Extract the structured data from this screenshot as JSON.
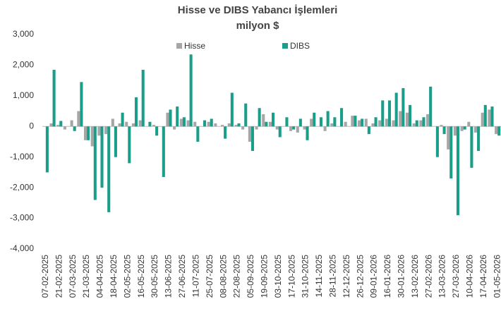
{
  "chart_data": {
    "type": "bar",
    "title": "Hisse ve DIBS Yabancı İşlemleri",
    "subtitle": "milyon $",
    "categories": [
      "07-02-2025",
      null,
      "21-02-2025",
      null,
      "07-03-2025",
      null,
      "21-03-2025",
      null,
      "04-04-2025",
      null,
      "18-04-2025",
      null,
      "02-05-2025",
      null,
      "16-05-2025",
      null,
      "30-05-2025",
      null,
      "13-06-2025",
      null,
      "27-06-2025",
      null,
      "11-07-2025",
      null,
      "25-07-2025",
      null,
      "08-08-2025",
      null,
      "22-08-2025",
      null,
      "05-09-2025",
      null,
      "19-09-2025",
      null,
      "03-10-2025",
      null,
      "17-10-2025",
      null,
      "31-10-2025",
      null,
      "14-11-2025",
      null,
      "28-11-2025",
      null,
      "12-12-2025",
      null,
      "26-12-2025",
      null,
      "09-01-2026",
      null,
      "16-01-2026",
      null,
      "30-01-2026",
      null,
      "13-02-2026",
      null,
      "27-02-2026",
      null,
      "13-03-2026",
      null,
      "27-03-2026",
      null,
      "10-04-2026",
      null,
      "17-04-2026",
      null,
      "01-05-2026"
    ],
    "series": [
      {
        "name": "Hisse",
        "color": "#a6a6a6",
        "values": [
          0,
          100,
          50,
          -100,
          200,
          500,
          -450,
          -650,
          -300,
          -250,
          250,
          100,
          150,
          100,
          200,
          0,
          50,
          0,
          450,
          -100,
          250,
          200,
          150,
          0,
          150,
          100,
          50,
          100,
          50,
          -100,
          -500,
          -100,
          400,
          150,
          -100,
          0,
          -150,
          -200,
          -100,
          250,
          0,
          -150,
          100,
          0,
          150,
          350,
          200,
          250,
          100,
          200,
          250,
          200,
          500,
          450,
          100,
          200,
          400,
          0,
          50,
          -750,
          -300,
          -150,
          150,
          -200,
          450,
          550,
          -250
        ]
      },
      {
        "name": "DIBS",
        "color": "#1a9e8a",
        "values": [
          -1500,
          1850,
          180,
          0,
          -150,
          1450,
          -450,
          -2400,
          -2000,
          -2800,
          -1000,
          450,
          -1200,
          950,
          1850,
          150,
          -300,
          -1650,
          550,
          650,
          300,
          2350,
          -500,
          200,
          250,
          0,
          -400,
          1100,
          100,
          750,
          -800,
          600,
          150,
          450,
          -350,
          300,
          -100,
          250,
          -450,
          450,
          300,
          500,
          300,
          600,
          0,
          350,
          250,
          -250,
          300,
          850,
          850,
          1100,
          1250,
          700,
          200,
          300,
          1300,
          -1000,
          -250,
          -1700,
          -2900,
          -100,
          -1350,
          -800,
          700,
          650,
          -300
        ]
      }
    ],
    "ylim": [
      -4000,
      3000
    ],
    "yticks": [
      {
        "value": -4000,
        "label": "-4,000"
      },
      {
        "value": -3000,
        "label": "-3,000"
      },
      {
        "value": -2000,
        "label": "-2,000"
      },
      {
        "value": -1000,
        "label": "-1,000"
      },
      0,
      {
        "value": 1000,
        "label": "1,000"
      },
      {
        "value": 2000,
        "label": "2,000"
      },
      {
        "value": 3000,
        "label": "3,000"
      }
    ],
    "grid": false,
    "legend": "top"
  }
}
